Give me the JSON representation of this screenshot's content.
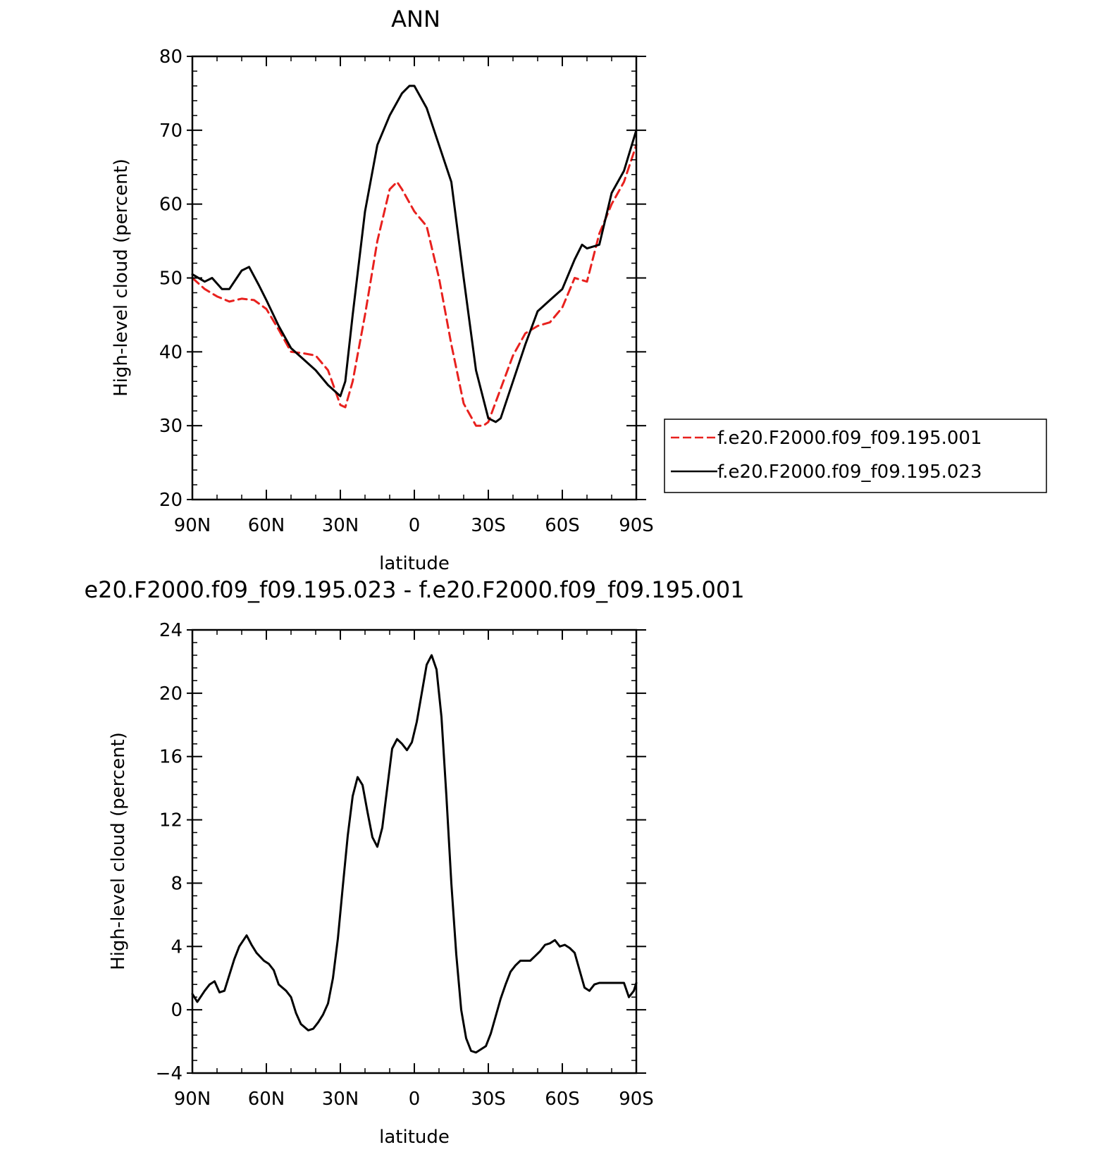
{
  "chart_data": [
    {
      "type": "line",
      "title": "ANN",
      "xlabel": "latitude",
      "ylabel": "High-level cloud (percent)",
      "xlim": [
        90,
        -90
      ],
      "ylim": [
        20,
        80
      ],
      "yticks": [
        20,
        30,
        40,
        50,
        60,
        70,
        80
      ],
      "xticks": [
        90,
        60,
        30,
        0,
        -30,
        -60,
        -90
      ],
      "xtick_labels": [
        "90N",
        "60N",
        "30N",
        "0",
        "30S",
        "60S",
        "90S"
      ],
      "grid": false,
      "legend": "right",
      "series": [
        {
          "name": "f.e20.F2000.f09_f09.195.001",
          "color": "#e8211e",
          "style": "dashed",
          "x": [
            90,
            85,
            80,
            75,
            70,
            65,
            60,
            55,
            50,
            45,
            40,
            35,
            30,
            28,
            25,
            20,
            15,
            10,
            7,
            5,
            0,
            -5,
            -10,
            -15,
            -20,
            -25,
            -28,
            -30,
            -35,
            -40,
            -45,
            -50,
            -55,
            -60,
            -65,
            -70,
            -75,
            -80,
            -85,
            -90
          ],
          "y": [
            50,
            48.5,
            47.5,
            46.8,
            47.2,
            47,
            45.8,
            43,
            40,
            39.8,
            39.5,
            37.5,
            32.8,
            32.5,
            36,
            45,
            55,
            62,
            63,
            62,
            59,
            57,
            50,
            41,
            33,
            30,
            30,
            30.5,
            35,
            39.5,
            42.5,
            43.5,
            44,
            46,
            50,
            49.5,
            56,
            60,
            63,
            68
          ]
        },
        {
          "name": "f.e20.F2000.f09_f09.195.023",
          "color": "#000000",
          "style": "solid",
          "x": [
            90,
            85,
            82,
            78,
            75,
            70,
            67,
            63,
            60,
            55,
            50,
            45,
            40,
            35,
            30,
            28,
            25,
            20,
            15,
            10,
            5,
            2,
            0,
            -5,
            -10,
            -15,
            -20,
            -25,
            -30,
            -33,
            -35,
            -40,
            -45,
            -50,
            -55,
            -60,
            -65,
            -68,
            -70,
            -75,
            -80,
            -85,
            -90
          ],
          "y": [
            50.5,
            49.5,
            50,
            48.5,
            48.5,
            51,
            51.5,
            49,
            47,
            43.5,
            40.5,
            39,
            37.5,
            35.5,
            34,
            36,
            45,
            59,
            68,
            72,
            75,
            76,
            76,
            73,
            68,
            63,
            50,
            37.5,
            31,
            30.5,
            31,
            36,
            41,
            45.5,
            47,
            48.5,
            52.5,
            54.5,
            54,
            54.5,
            61.5,
            64.5,
            70
          ]
        }
      ]
    },
    {
      "type": "line",
      "title": "e20.F2000.f09_f09.195.023 - f.e20.F2000.f09_f09.195.001",
      "xlabel": "latitude",
      "ylabel": "High-level cloud (percent)",
      "xlim": [
        90,
        -90
      ],
      "ylim": [
        -4,
        24
      ],
      "yticks": [
        -4,
        0,
        4,
        8,
        12,
        16,
        20,
        24
      ],
      "ytick_labels": [
        "−4",
        "0",
        "4",
        "8",
        "12",
        "16",
        "20",
        "24"
      ],
      "xticks": [
        90,
        60,
        30,
        0,
        -30,
        -60,
        -90
      ],
      "xtick_labels": [
        "90N",
        "60N",
        "30N",
        "0",
        "30S",
        "60S",
        "90S"
      ],
      "grid": false,
      "series": [
        {
          "color": "#000000",
          "style": "solid",
          "x": [
            90,
            88,
            85,
            83,
            81,
            79,
            77,
            75,
            73,
            71,
            68,
            66,
            64,
            61,
            59,
            57,
            55,
            52,
            50,
            48,
            46,
            43,
            41,
            39,
            37,
            35,
            33,
            31,
            29,
            27,
            25,
            23,
            21,
            19,
            17,
            15,
            13,
            11,
            9,
            7,
            5,
            3,
            1,
            -1,
            -3,
            -5,
            -7,
            -9,
            -11,
            -13,
            -15,
            -17,
            -19,
            -21,
            -23,
            -25,
            -27,
            -29,
            -31,
            -33,
            -35,
            -37,
            -39,
            -41,
            -43,
            -45,
            -47,
            -49,
            -51,
            -53,
            -55,
            -57,
            -59,
            -61,
            -63,
            -65,
            -67,
            -69,
            -71,
            -73,
            -75,
            -77,
            -79,
            -81,
            -83,
            -85,
            -87,
            -89,
            -90
          ],
          "y": [
            1.0,
            0.5,
            1.2,
            1.6,
            1.8,
            1.1,
            1.2,
            2.2,
            3.2,
            4.0,
            4.7,
            4.1,
            3.6,
            3.1,
            2.9,
            2.5,
            1.6,
            1.2,
            0.8,
            -0.2,
            -0.9,
            -1.3,
            -1.2,
            -0.8,
            -0.3,
            0.4,
            2.0,
            4.5,
            7.8,
            11.0,
            13.5,
            14.7,
            14.2,
            12.5,
            10.9,
            10.3,
            11.5,
            14.0,
            16.5,
            17.1,
            16.8,
            16.4,
            16.9,
            18.2,
            20.0,
            21.8,
            22.4,
            21.5,
            18.5,
            13.5,
            8.0,
            3.5,
            0.0,
            -1.8,
            -2.6,
            -2.7,
            -2.5,
            -2.3,
            -1.5,
            -0.4,
            0.7,
            1.6,
            2.4,
            2.8,
            3.1,
            3.1,
            3.1,
            3.4,
            3.7,
            4.1,
            4.2,
            4.4,
            4.0,
            4.1,
            3.9,
            3.6,
            2.5,
            1.4,
            1.2,
            1.6,
            1.7,
            1.7,
            1.7,
            1.7,
            1.7,
            1.7,
            0.8,
            1.2,
            1.7
          ]
        }
      ]
    }
  ]
}
